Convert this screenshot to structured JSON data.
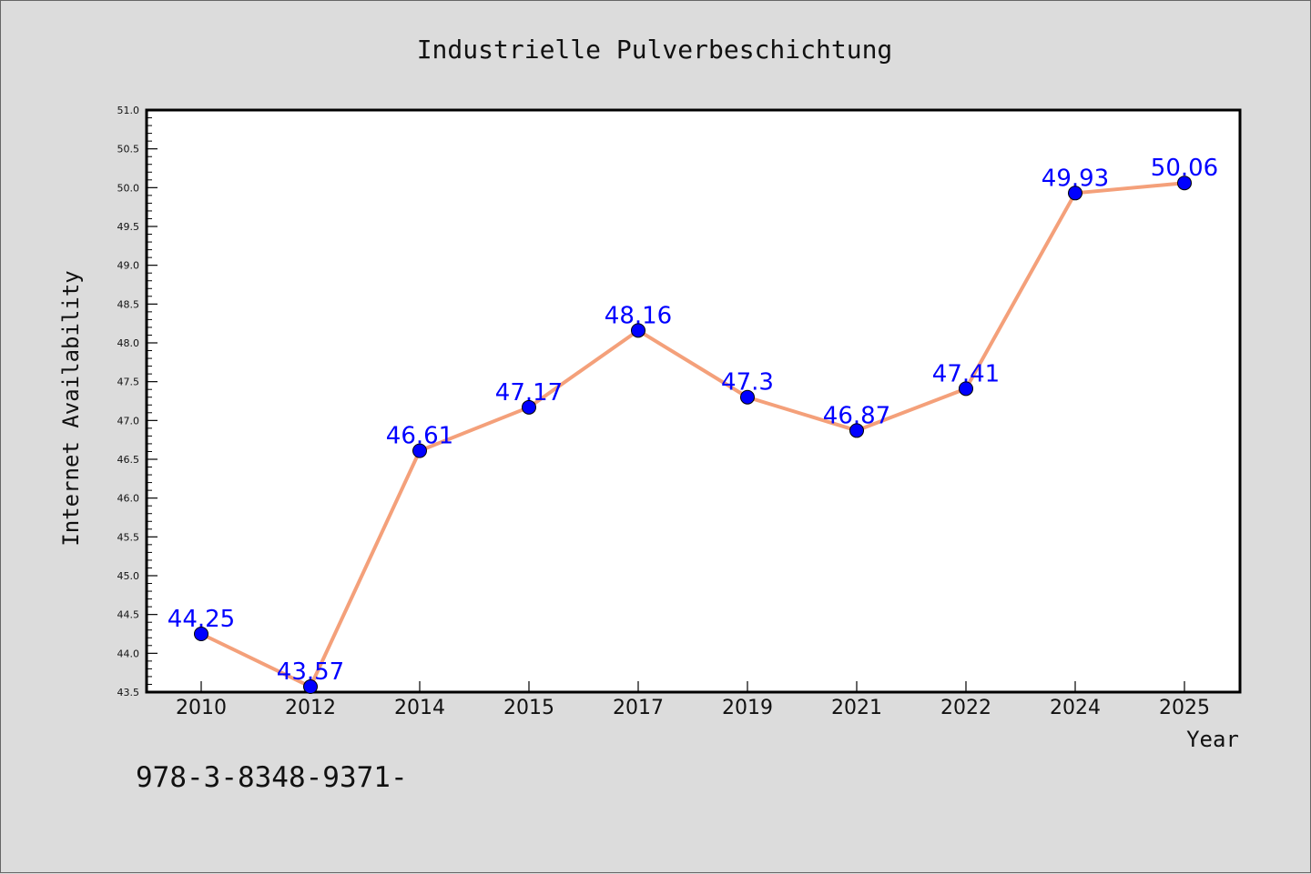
{
  "chart_data": {
    "type": "line",
    "title": "Industrielle Pulverbeschichtung",
    "xlabel": "Year",
    "ylabel": "Internet Availability",
    "categories": [
      "2010",
      "2012",
      "2014",
      "2015",
      "2017",
      "2019",
      "2021",
      "2022",
      "2024",
      "2025"
    ],
    "series": [
      {
        "values": [
          44.25,
          43.57,
          46.61,
          47.17,
          48.16,
          47.3,
          46.87,
          47.41,
          49.93,
          50.06
        ]
      }
    ],
    "data_labels": [
      "44.25",
      "43.57",
      "46.61",
      "47.17",
      "48.16",
      "47.3",
      "46.87",
      "47.41",
      "49.93",
      "50.06"
    ],
    "ylim": [
      43.5,
      51.0
    ],
    "yticks": [
      "43.5",
      "44.0",
      "44.5",
      "45.0",
      "45.5",
      "46.0",
      "46.5",
      "47.0",
      "47.5",
      "48.0",
      "48.5",
      "49.0",
      "49.5",
      "50.0",
      "50.5",
      "51.0"
    ],
    "grid": false,
    "colors": {
      "line": "#f4a07a",
      "marker": "#0000ff",
      "label": "#0000ff",
      "plot_bg": "#ffffff",
      "page_bg": "#dcdcdc"
    }
  },
  "footnote": "978-3-8348-9371-"
}
